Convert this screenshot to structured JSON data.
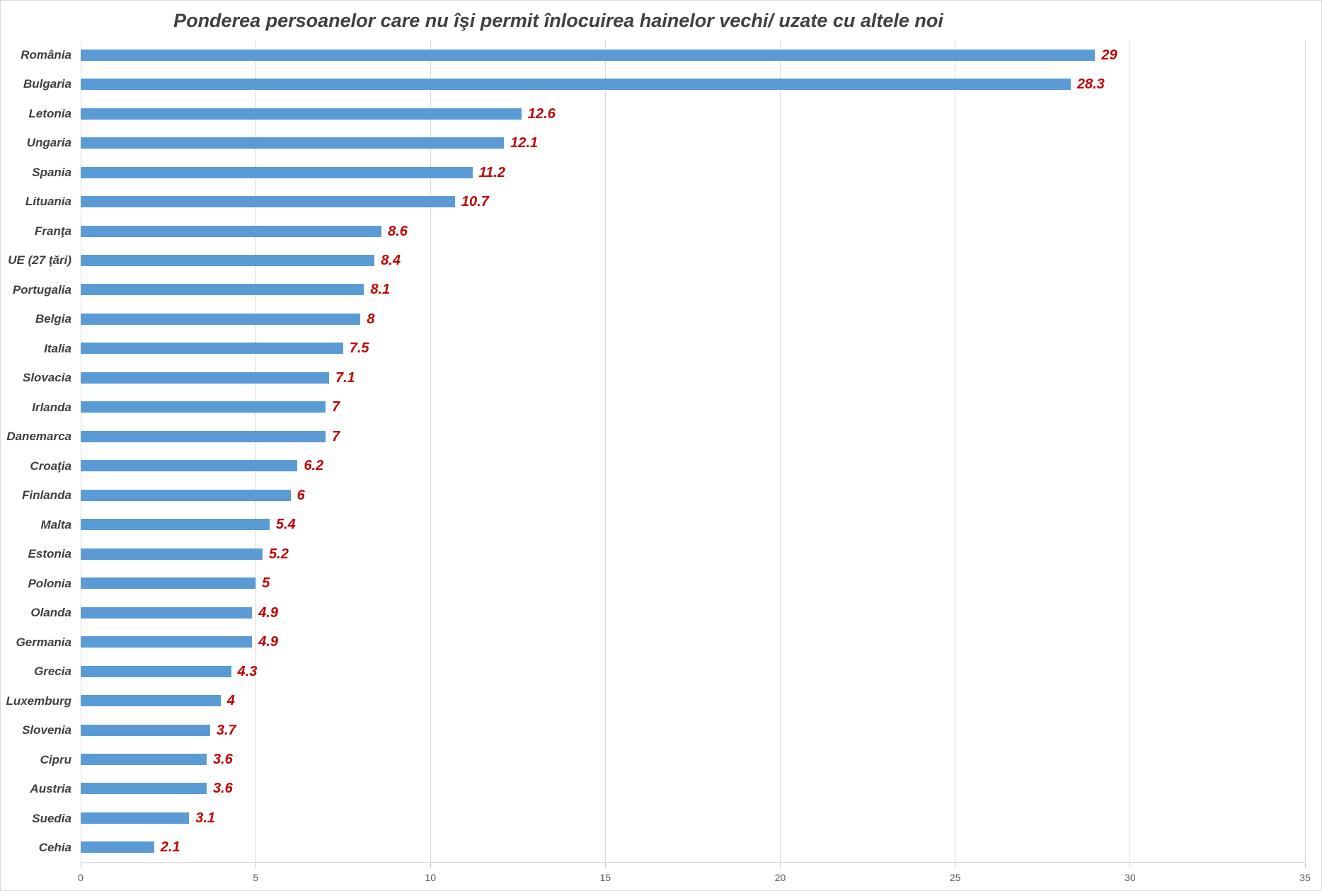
{
  "chart_data": {
    "type": "bar",
    "orientation": "horizontal",
    "title": "Ponderea persoanelor care nu îşi permit înlocuirea hainelor vechi/ uzate cu altele noi",
    "categories": [
      "România",
      "Bulgaria",
      "Letonia",
      "Ungaria",
      "Spania",
      "Lituania",
      "Franţa",
      "UE (27 ţări)",
      "Portugalia",
      "Belgia",
      "Italia",
      "Slovacia",
      "Irlanda",
      "Danemarca",
      "Croaţia",
      "Finlanda",
      "Malta",
      "Estonia",
      "Polonia",
      "Olanda",
      "Germania",
      "Grecia",
      "Luxemburg",
      "Slovenia",
      "Cipru",
      "Austria",
      "Suedia",
      "Cehia"
    ],
    "values": [
      29,
      28.3,
      12.6,
      12.1,
      11.2,
      10.7,
      8.6,
      8.4,
      8.1,
      8,
      7.5,
      7.1,
      7,
      7,
      6.2,
      6,
      5.4,
      5.2,
      5,
      4.9,
      4.9,
      4.3,
      4,
      3.7,
      3.6,
      3.6,
      3.1,
      2.1
    ],
    "value_labels": [
      "29",
      "28.3",
      "12.6",
      "12.1",
      "11.2",
      "10.7",
      "8.6",
      "8.4",
      "8.1",
      "8",
      "7.5",
      "7.1",
      "7",
      "7",
      "6.2",
      "6",
      "5.4",
      "5.2",
      "5",
      "4.9",
      "4.9",
      "4.3",
      "4",
      "3.7",
      "3.6",
      "3.6",
      "3.1",
      "2.1"
    ],
    "xlabel": "",
    "ylabel": "",
    "xlim": [
      0,
      35
    ],
    "xticks": [
      "0",
      "5",
      "10",
      "15",
      "20",
      "25",
      "30",
      "35"
    ],
    "grid": true,
    "legend": false,
    "colors": {
      "bar": "#5B9BD5",
      "value_label": "#C00000",
      "category_label": "#3F3F3F",
      "title": "#404040",
      "gridline": "#D9D9D9",
      "axis_text": "#595959",
      "border": "#D9D9D9",
      "background": "#FFFFFF"
    }
  }
}
